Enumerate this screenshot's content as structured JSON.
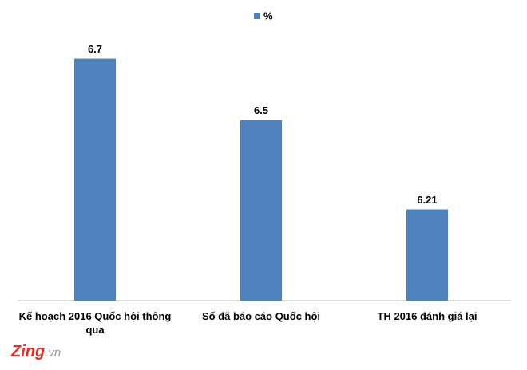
{
  "chart_data": {
    "type": "bar",
    "categories": [
      "Kế hoạch 2016 Quốc hội thông qua",
      "Số đã báo cáo Quốc hội",
      "TH 2016 đánh giá lại"
    ],
    "series": [
      {
        "name": "%",
        "color": "#4f81bd",
        "values": [
          6.7,
          6.5,
          6.21
        ]
      }
    ],
    "ylim": [
      5.913,
      6.8
    ],
    "legend": "top"
  },
  "logo": {
    "main": "Zing",
    "suffix": ".vn"
  }
}
